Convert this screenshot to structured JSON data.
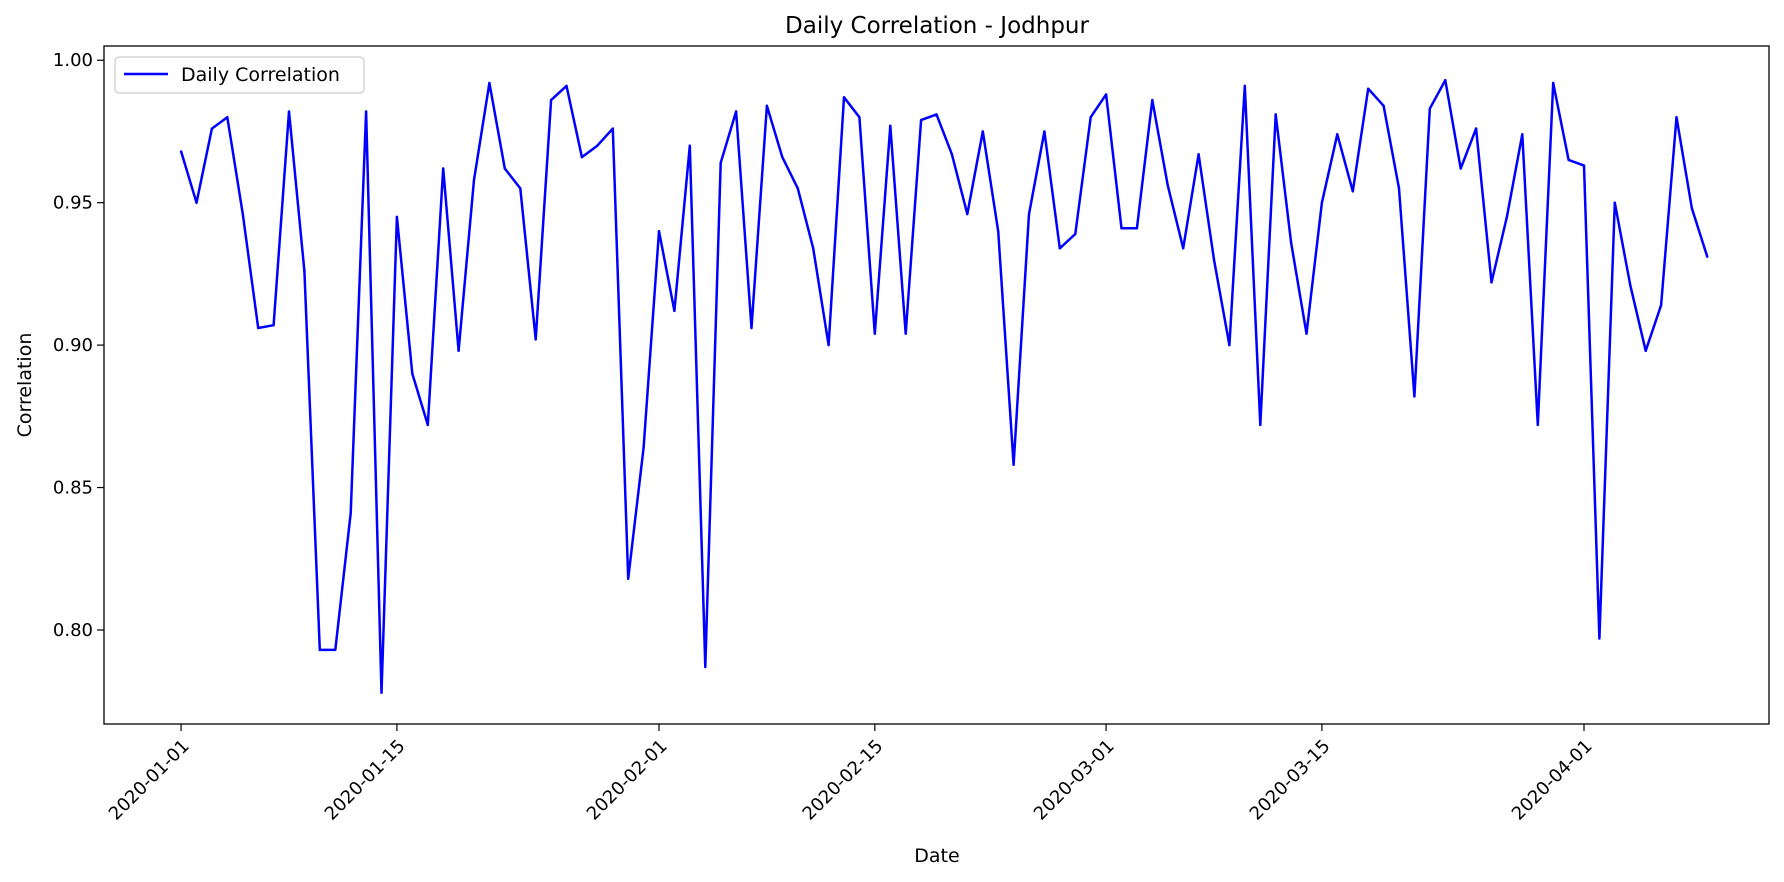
{
  "chart_data": {
    "type": "line",
    "title": "Daily Correlation - Jodhpur",
    "xlabel": "Date",
    "ylabel": "Correlation",
    "x_start": "2020-01-01",
    "xlim": [
      "2019-12-27",
      "2020-04-13"
    ],
    "ylim": [
      0.767,
      1.005
    ],
    "grid": false,
    "legend_position": "top-left",
    "x_ticks": [
      "2020-01-01",
      "2020-01-15",
      "2020-02-01",
      "2020-02-15",
      "2020-03-01",
      "2020-03-15",
      "2020-04-01"
    ],
    "y_ticks": [
      0.8,
      0.85,
      0.9,
      0.95,
      1.0
    ],
    "y_tick_labels": [
      "0.80",
      "0.85",
      "0.90",
      "0.95",
      "1.00"
    ],
    "series": [
      {
        "name": "Daily Correlation",
        "color": "#0000ff",
        "dates": [
          "2020-01-01",
          "2020-01-02",
          "2020-01-03",
          "2020-01-04",
          "2020-01-05",
          "2020-01-06",
          "2020-01-07",
          "2020-01-08",
          "2020-01-09",
          "2020-01-10",
          "2020-01-11",
          "2020-01-12",
          "2020-01-13",
          "2020-01-14",
          "2020-01-15",
          "2020-01-16",
          "2020-01-17",
          "2020-01-18",
          "2020-01-19",
          "2020-01-20",
          "2020-01-21",
          "2020-01-22",
          "2020-01-23",
          "2020-01-24",
          "2020-01-25",
          "2020-01-26",
          "2020-01-27",
          "2020-01-28",
          "2020-01-29",
          "2020-01-30",
          "2020-01-31",
          "2020-02-01",
          "2020-02-02",
          "2020-02-03",
          "2020-02-04",
          "2020-02-05",
          "2020-02-06",
          "2020-02-07",
          "2020-02-08",
          "2020-02-09",
          "2020-02-10",
          "2020-02-11",
          "2020-02-12",
          "2020-02-13",
          "2020-02-14",
          "2020-02-15",
          "2020-02-16",
          "2020-02-17",
          "2020-02-18",
          "2020-02-19",
          "2020-02-20",
          "2020-02-21",
          "2020-02-22",
          "2020-02-23",
          "2020-02-24",
          "2020-02-25",
          "2020-02-26",
          "2020-02-27",
          "2020-02-28",
          "2020-02-29",
          "2020-03-01",
          "2020-03-02",
          "2020-03-03",
          "2020-03-04",
          "2020-03-05",
          "2020-03-06",
          "2020-03-07",
          "2020-03-08",
          "2020-03-09",
          "2020-03-10",
          "2020-03-11",
          "2020-03-12",
          "2020-03-13",
          "2020-03-14",
          "2020-03-15",
          "2020-03-16",
          "2020-03-17",
          "2020-03-18",
          "2020-03-19",
          "2020-03-20",
          "2020-03-21",
          "2020-03-22",
          "2020-03-23",
          "2020-03-24",
          "2020-03-25",
          "2020-03-26",
          "2020-03-27",
          "2020-03-28",
          "2020-03-29",
          "2020-03-30",
          "2020-03-31",
          "2020-04-01",
          "2020-04-02",
          "2020-04-03",
          "2020-04-04",
          "2020-04-05",
          "2020-04-06",
          "2020-04-07",
          "2020-04-08",
          "2020-04-09"
        ],
        "values": [
          0.968,
          0.95,
          0.976,
          0.98,
          0.946,
          0.906,
          0.907,
          0.982,
          0.926,
          0.793,
          0.793,
          0.841,
          0.982,
          0.778,
          0.945,
          0.89,
          0.872,
          0.962,
          0.898,
          0.958,
          0.992,
          0.962,
          0.955,
          0.902,
          0.986,
          0.991,
          0.966,
          0.97,
          0.976,
          0.818,
          0.864,
          0.94,
          0.912,
          0.97,
          0.787,
          0.964,
          0.982,
          0.906,
          0.984,
          0.966,
          0.955,
          0.934,
          0.9,
          0.987,
          0.98,
          0.904,
          0.977,
          0.904,
          0.979,
          0.981,
          0.967,
          0.946,
          0.975,
          0.94,
          0.858,
          0.946,
          0.975,
          0.934,
          0.939,
          0.98,
          0.988,
          0.941,
          0.941,
          0.986,
          0.956,
          0.934,
          0.967,
          0.93,
          0.9,
          0.991,
          0.872,
          0.981,
          0.936,
          0.904,
          0.95,
          0.974,
          0.954,
          0.99,
          0.984,
          0.955,
          0.882,
          0.983,
          0.993,
          0.962,
          0.976,
          0.922,
          0.945,
          0.974,
          0.872,
          0.992,
          0.965,
          0.963,
          0.797,
          0.95,
          0.921,
          0.898,
          0.914,
          0.98,
          0.948,
          0.931
        ]
      }
    ]
  }
}
